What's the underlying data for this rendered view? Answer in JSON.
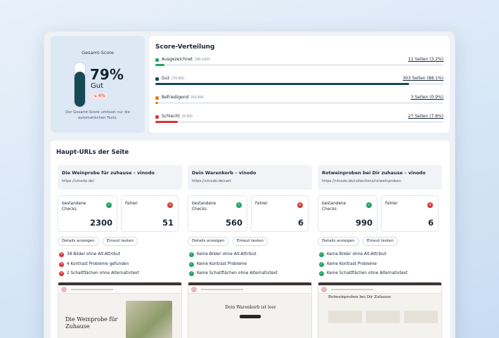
{
  "score": {
    "title": "Gesamt-Score",
    "value": "79%",
    "label": "Gut",
    "delta": "↘ 4%",
    "level": 0.79,
    "note_line1": "Der Gesamt-Score umfasst nur die",
    "note_line2": "automatischen Tests."
  },
  "distribution": {
    "title": "Score-Verteilung",
    "rows": [
      {
        "name": "Ausgezeichnet",
        "range": "(90-100)",
        "count": "11 Seiten (3.2%)",
        "fraction": 0.032,
        "color": "#21a366"
      },
      {
        "name": "Gut",
        "range": "(70-89)",
        "count": "303 Seiten (88.1%)",
        "fraction": 0.881,
        "color": "#174a55"
      },
      {
        "name": "Befriedigend",
        "range": "(50-69)",
        "count": "3 Seiten (0.9%)",
        "fraction": 0.009,
        "color": "#e07b1a"
      },
      {
        "name": "Schlecht",
        "range": "(0-49)",
        "count": "27 Seiten (7.8%)",
        "fraction": 0.078,
        "color": "#d93434"
      }
    ]
  },
  "main": {
    "title": "Haupt-URLs der Seite",
    "pass_label_1": "bestandene",
    "pass_label_2": "Checks",
    "fail_label": "Fehler",
    "details_button": "Details anzeigen",
    "retest_button": "Erneut testen",
    "colors": {
      "pass": "#21a366",
      "fail": "#d93434"
    },
    "urls": [
      {
        "name": "Die Weinprobe für zuhause – vinodo",
        "path": "https://vinodo.de/",
        "passed": "2300",
        "errors": "51",
        "checks": [
          {
            "text": "38 Bilder ohne Alt-Attribut",
            "status": "fail"
          },
          {
            "text": "4 Kontrast Probleme gefunden",
            "status": "fail"
          },
          {
            "text": "2 Schaltflächen ohne Alternativtext",
            "status": "fail"
          }
        ],
        "preview": {
          "heading_1": "Die Weinprobe für",
          "heading_2": "Zuhause"
        }
      },
      {
        "name": "Dein Warenkorb – vinodo",
        "path": "https://vinodo.de/cart",
        "passed": "560",
        "errors": "6",
        "checks": [
          {
            "text": "Keine Bilder ohne Alt-Attribut",
            "status": "pass"
          },
          {
            "text": "Keine Kontrast Probleme",
            "status": "pass"
          },
          {
            "text": "Keine Schaltflächen ohne Alternativtext",
            "status": "pass"
          }
        ],
        "preview": {
          "heading_1": "Dein Warenkorb ist leer",
          "heading_2": ""
        }
      },
      {
        "name": "Rotweinproben bei Dir zuhause – vinodo",
        "path": "https://vinodo.de/collections/rotweinproben",
        "passed": "990",
        "errors": "6",
        "checks": [
          {
            "text": "Keine Bilder ohne Alt-Attribut",
            "status": "pass"
          },
          {
            "text": "Keine Kontrast Probleme",
            "status": "pass"
          },
          {
            "text": "Keine Schaltflächen ohne Alternativtext",
            "status": "pass"
          }
        ],
        "preview": {
          "heading_1": "Rotweinproben bei Dir Zuhause",
          "heading_2": ""
        }
      }
    ]
  }
}
